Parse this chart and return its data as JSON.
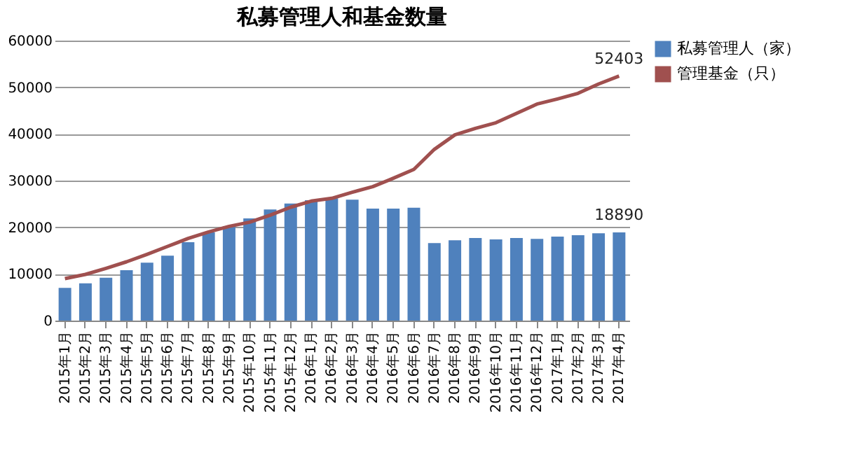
{
  "chart_data": {
    "type": "bar",
    "title": "私募管理人和基金数量",
    "categories": [
      "2015年1月",
      "2015年2月",
      "2015年3月",
      "2015年4月",
      "2015年5月",
      "2015年6月",
      "2015年7月",
      "2015年8月",
      "2015年9月",
      "2015年10月",
      "2015年11月",
      "2015年12月",
      "2016年1月",
      "2016年2月",
      "2016年3月",
      "2016年4月",
      "2016年5月",
      "2016年6月",
      "2016年7月",
      "2016年8月",
      "2016年9月",
      "2016年10月",
      "2016年11月",
      "2016年12月",
      "2017年1月",
      "2017年2月",
      "2017年3月",
      "2017年4月"
    ],
    "series": [
      {
        "name": "私募管理人（家）",
        "color": "#4f81bd",
        "values": [
          7000,
          8000,
          9200,
          10800,
          12400,
          13900,
          16800,
          18900,
          20200,
          21900,
          23800,
          25100,
          25800,
          26200,
          25900,
          24000,
          24000,
          24200,
          16600,
          17200,
          17700,
          17400,
          17700,
          17500,
          18000,
          18300,
          18700,
          18890
        ],
        "value_labels": [
          null,
          null,
          null,
          null,
          null,
          null,
          null,
          null,
          null,
          null,
          null,
          null,
          null,
          null,
          null,
          null,
          null,
          null,
          null,
          null,
          null,
          null,
          null,
          null,
          null,
          null,
          null,
          "18890"
        ]
      },
      {
        "name": "管理基金（只）",
        "type": "line",
        "color": "#a0504f",
        "values": [
          9000,
          9900,
          11200,
          12600,
          14200,
          15900,
          17600,
          19000,
          20200,
          21100,
          22600,
          24300,
          25600,
          26200,
          27500,
          28700,
          30500,
          32400,
          36700,
          39800,
          41200,
          42400,
          44400,
          46400,
          47500,
          48700,
          50700,
          52403
        ],
        "value_labels": [
          null,
          null,
          null,
          null,
          null,
          null,
          null,
          null,
          null,
          null,
          null,
          null,
          null,
          null,
          null,
          null,
          null,
          null,
          null,
          null,
          null,
          null,
          null,
          null,
          null,
          null,
          null,
          "52403"
        ]
      }
    ],
    "ylim": [
      0,
      60000
    ],
    "yticks": [
      0,
      10000,
      20000,
      30000,
      40000,
      50000,
      60000
    ],
    "grid": "y",
    "legend": "right"
  }
}
